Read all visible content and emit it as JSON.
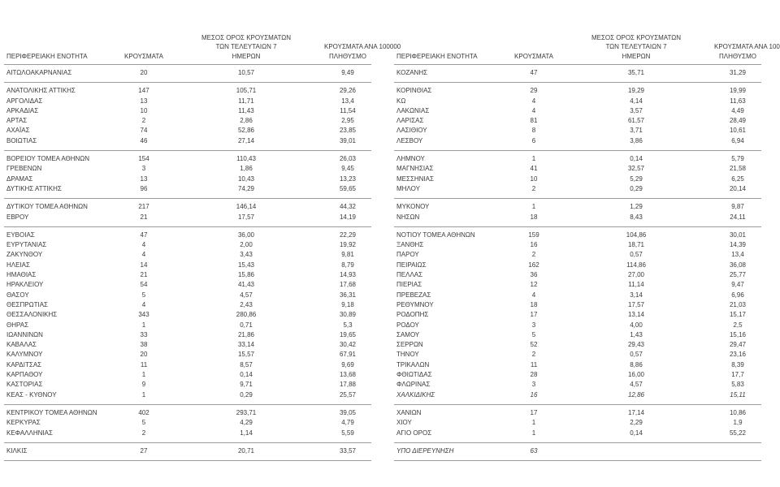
{
  "headers": {
    "region": "ΠΕΡΙΦΕΡΕΙΑΚΗ ΕΝΟΤΗΤΑ",
    "cases": "ΚΡΟΥΣΜΑΤΑ",
    "avg_lines": [
      "ΜΕΣΟΣ ΟΡΟΣ ΚΡΟΥΣΜΑΤΩΝ",
      "ΤΩΝ ΤΕΛΕΥΤΑΙΩΝ 7",
      "ΗΜΕΡΩΝ"
    ],
    "per100k_lines": [
      "ΚΡΟΥΣΜΑΤΑ ΑΝΑ 100000",
      "ΠΛΗΘΥΣΜΟ"
    ]
  },
  "columns": [
    "ΠΕΡΙΦΕΡΕΙΑΚΗ ΕΝΟΤΗΤΑ",
    "ΚΡΟΥΣΜΑΤΑ",
    "ΜΕΣΟΣ ΟΡΟΣ ΚΡΟΥΣΜΑΤΩΝ ΤΩΝ ΤΕΛΕΥΤΑΙΩΝ 7 ΗΜΕΡΩΝ",
    "ΚΡΟΥΣΜΑΤΑ ΑΝΑ 100000 ΠΛΗΘΥΣΜΟ"
  ],
  "left_table": {
    "groups": [
      [
        [
          "ΑΙΤΩΛΟΑΚΑΡΝΑΝΙΑΣ",
          "20",
          "10,57",
          "9,49"
        ]
      ],
      [
        [
          "ΑΝΑΤΟΛΙΚΗΣ ΑΤΤΙΚΗΣ",
          "147",
          "105,71",
          "29,26"
        ],
        [
          "ΑΡΓΟΛΙΔΑΣ",
          "13",
          "11,71",
          "13,4"
        ],
        [
          "ΑΡΚΑΔΙΑΣ",
          "10",
          "11,43",
          "11,54"
        ],
        [
          "ΑΡΤΑΣ",
          "2",
          "2,86",
          "2,95"
        ],
        [
          "ΑΧΑΪΑΣ",
          "74",
          "52,86",
          "23,85"
        ],
        [
          "ΒΟΙΩΤΙΑΣ",
          "46",
          "27,14",
          "39,01"
        ]
      ],
      [
        [
          "ΒΟΡΕΙΟΥ ΤΟΜΕΑ ΑΘΗΝΩΝ",
          "154",
          "110,43",
          "26,03"
        ],
        [
          "ΓΡΕΒΕΝΩΝ",
          "3",
          "1,86",
          "9,45"
        ],
        [
          "ΔΡΑΜΑΣ",
          "13",
          "10,43",
          "13,23"
        ],
        [
          "ΔΥΤΙΚΗΣ ΑΤΤΙΚΗΣ",
          "96",
          "74,29",
          "59,65"
        ]
      ],
      [
        [
          "ΔΥΤΙΚΟΥ ΤΟΜΕΑ ΑΘΗΝΩΝ",
          "217",
          "146,14",
          "44,32"
        ],
        [
          "ΕΒΡΟΥ",
          "21",
          "17,57",
          "14,19"
        ]
      ],
      [
        [
          "ΕΥΒΟΙΑΣ",
          "47",
          "36,00",
          "22,29"
        ],
        [
          "ΕΥΡΥΤΑΝΙΑΣ",
          "4",
          "2,00",
          "19,92"
        ],
        [
          "ΖΑΚΥΝΘΟΥ",
          "4",
          "3,43",
          "9,81"
        ],
        [
          "ΗΛΕΙΑΣ",
          "14",
          "15,43",
          "8,79"
        ],
        [
          "ΗΜΑΘΙΑΣ",
          "21",
          "15,86",
          "14,93"
        ],
        [
          "ΗΡΑΚΛΕΙΟΥ",
          "54",
          "41,43",
          "17,68"
        ],
        [
          "ΘΑΣΟΥ",
          "5",
          "4,57",
          "36,31"
        ],
        [
          "ΘΕΣΠΡΩΤΙΑΣ",
          "4",
          "2,43",
          "9,18"
        ],
        [
          "ΘΕΣΣΑΛΟΝΙΚΗΣ",
          "343",
          "280,86",
          "30,89"
        ],
        [
          "ΘΗΡΑΣ",
          "1",
          "0,71",
          "5,3"
        ],
        [
          "ΙΩΑΝΝΙΝΩΝ",
          "33",
          "21,86",
          "19,65"
        ],
        [
          "ΚΑΒΑΛΑΣ",
          "38",
          "33,14",
          "30,42"
        ],
        [
          "ΚΑΛΥΜΝΟΥ",
          "20",
          "15,57",
          "67,91"
        ],
        [
          "ΚΑΡΔΙΤΣΑΣ",
          "11",
          "8,57",
          "9,69"
        ],
        [
          "ΚΑΡΠΑΘΟΥ",
          "1",
          "0,14",
          "13,68"
        ],
        [
          "ΚΑΣΤΟΡΙΑΣ",
          "9",
          "9,71",
          "17,88"
        ],
        [
          "ΚΕΑΣ - ΚΥΘΝΟΥ",
          "1",
          "0,29",
          "25,57"
        ]
      ],
      [
        [
          "ΚΕΝΤΡΙΚΟΥ ΤΟΜΕΑ ΑΘΗΝΩΝ",
          "402",
          "293,71",
          "39,05"
        ],
        [
          "ΚΕΡΚΥΡΑΣ",
          "5",
          "4,29",
          "4,79"
        ],
        [
          "ΚΕΦΑΛΛΗΝΙΑΣ",
          "2",
          "1,14",
          "5,59"
        ]
      ],
      [
        [
          "ΚΙΛΚΙΣ",
          "27",
          "20,71",
          "33,57"
        ]
      ]
    ]
  },
  "right_table": {
    "groups": [
      [
        [
          "ΚΟΖΑΝΗΣ",
          "47",
          "35,71",
          "31,29"
        ]
      ],
      [
        [
          "ΚΟΡΙΝΘΙΑΣ",
          "29",
          "19,29",
          "19,99"
        ],
        [
          "ΚΩ",
          "4",
          "4,14",
          "11,63"
        ],
        [
          "ΛΑΚΩΝΙΑΣ",
          "4",
          "3,57",
          "4,49"
        ],
        [
          "ΛΑΡΙΣΑΣ",
          "81",
          "61,57",
          "28,49"
        ],
        [
          "ΛΑΣΙΘΙΟΥ",
          "8",
          "3,71",
          "10,61"
        ],
        [
          "ΛΕΣΒΟΥ",
          "6",
          "3,86",
          "6,94"
        ]
      ],
      [
        [
          "ΛΗΜΝΟΥ",
          "1",
          "0,14",
          "5,79"
        ],
        [
          "ΜΑΓΝΗΣΙΑΣ",
          "41",
          "32,57",
          "21,58"
        ],
        [
          "ΜΕΣΣΗΝΙΑΣ",
          "10",
          "5,29",
          "6,25"
        ],
        [
          "ΜΗΛΟΥ",
          "2",
          "0,29",
          "20,14"
        ]
      ],
      [
        [
          "ΜΥΚΟΝΟΥ",
          "1",
          "1,29",
          "9,87"
        ],
        [
          "ΝΗΣΩΝ",
          "18",
          "8,43",
          "24,11"
        ]
      ],
      [
        [
          "ΝΟΤΙΟΥ ΤΟΜΕΑ ΑΘΗΝΩΝ",
          "159",
          "104,86",
          "30,01"
        ],
        [
          "ΞΑΝΘΗΣ",
          "16",
          "18,71",
          "14,39"
        ],
        [
          "ΠΑΡΟΥ",
          "2",
          "0,57",
          "13,4"
        ],
        [
          "ΠΕΙΡΑΙΩΣ",
          "162",
          "114,86",
          "36,08"
        ],
        [
          "ΠΕΛΛΑΣ",
          "36",
          "27,00",
          "25,77"
        ],
        [
          "ΠΙΕΡΙΑΣ",
          "12",
          "11,14",
          "9,47"
        ],
        [
          "ΠΡΕΒΕΖΑΣ",
          "4",
          "3,14",
          "6,96"
        ],
        [
          "ΡΕΘΥΜΝΟΥ",
          "18",
          "17,57",
          "21,03"
        ],
        [
          "ΡΟΔΟΠΗΣ",
          "17",
          "13,14",
          "15,17"
        ],
        [
          "ΡΟΔΟΥ",
          "3",
          "4,00",
          "2,5"
        ],
        [
          "ΣΑΜΟΥ",
          "5",
          "1,43",
          "15,16"
        ],
        [
          "ΣΕΡΡΩΝ",
          "52",
          "29,43",
          "29,47"
        ],
        [
          "ΤΗΝΟΥ",
          "2",
          "0,57",
          "23,16"
        ],
        [
          "ΤΡΙΚΑΛΩΝ",
          "11",
          "8,86",
          "8,39"
        ],
        [
          "ΦΘΙΩΤΙΔΑΣ",
          "28",
          "16,00",
          "17,7"
        ],
        [
          "ΦΛΩΡΙΝΑΣ",
          "3",
          "4,57",
          "5,83"
        ],
        [
          "ΧΑΛΚΙΔΙΚΗΣ",
          "16",
          "12,86",
          "15,11",
          "italic"
        ]
      ],
      [
        [
          "ΧΑΝΙΩΝ",
          "17",
          "17,14",
          "10,86"
        ],
        [
          "ΧΙΟΥ",
          "1",
          "2,29",
          "1,9"
        ],
        [
          "ΑΓΙΟ ΟΡΟΣ",
          "1",
          "0,14",
          "55,22"
        ]
      ],
      [
        [
          "ΥΠΟ ΔΙΕΡΕΥΝΗΣΗ",
          "63",
          "",
          "",
          "italic"
        ]
      ]
    ]
  },
  "colors": {
    "text": "#3a3a3a",
    "rule_line": "#9b9b9b",
    "background": "#ffffff"
  }
}
